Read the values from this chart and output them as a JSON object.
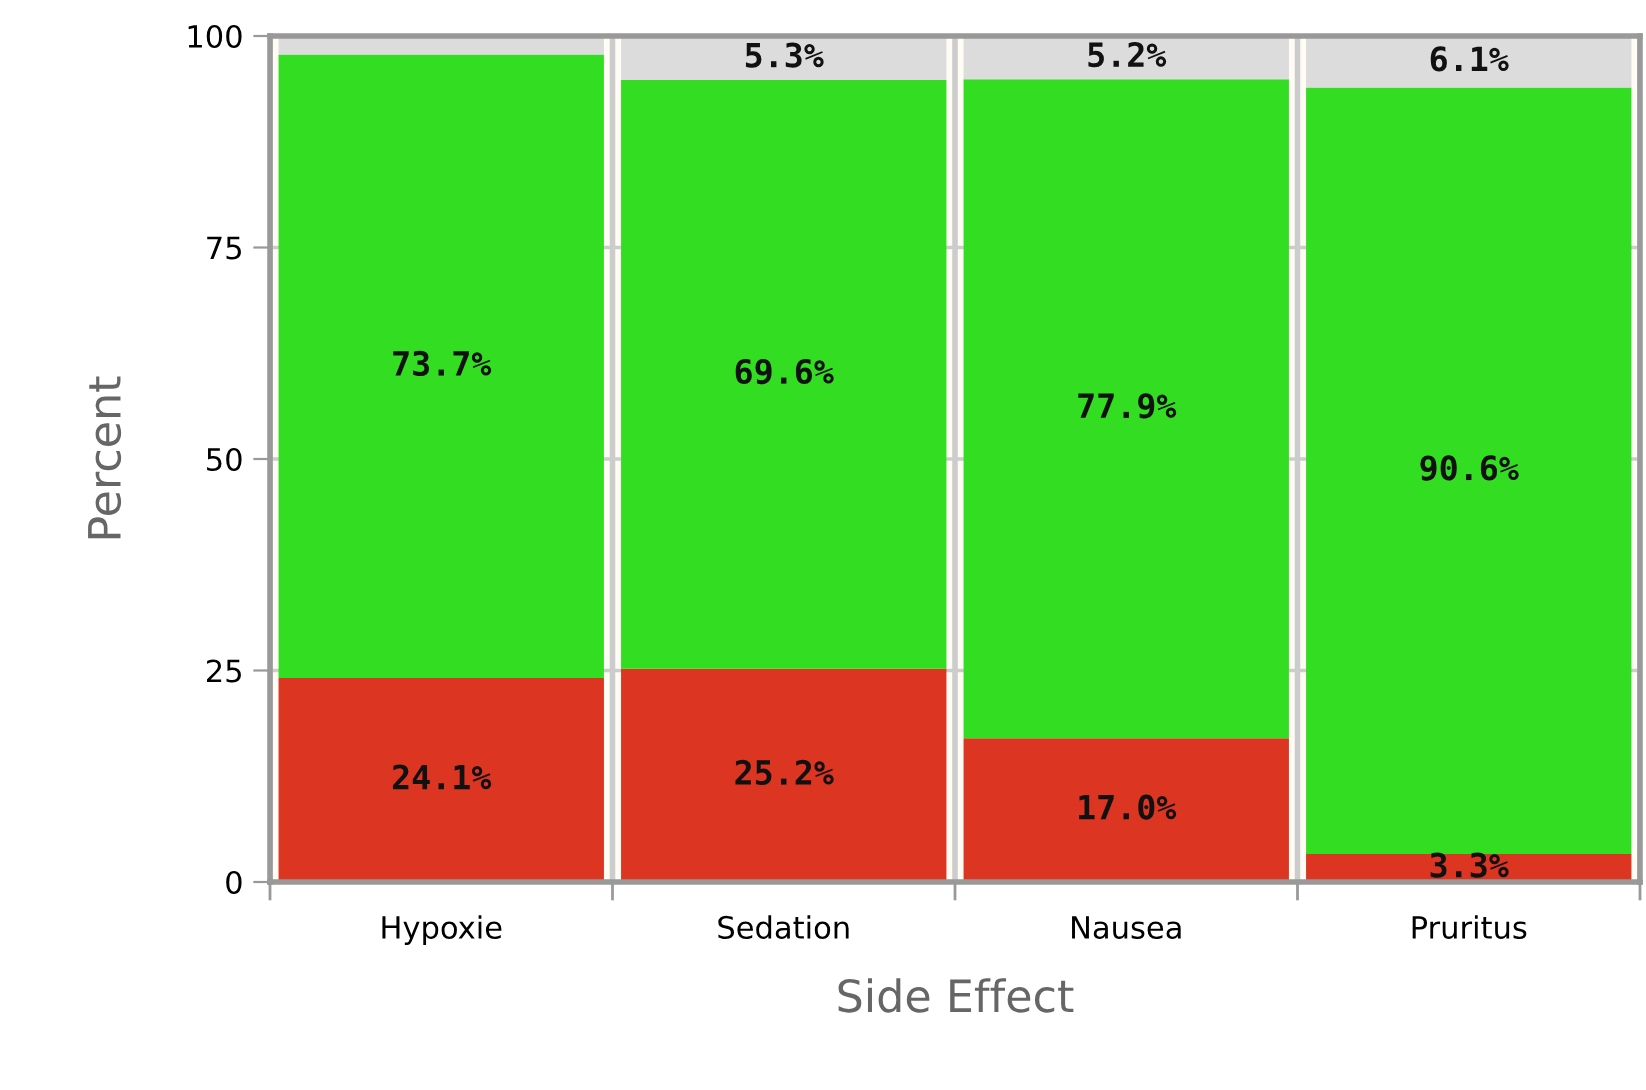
{
  "chart_data": {
    "type": "bar",
    "stacked": true,
    "xlabel": "Side Effect",
    "ylabel": "Percent",
    "categories": [
      "Hypoxie",
      "Sedation",
      "Nausea",
      "Pruritus"
    ],
    "series": [
      {
        "color": "#dc3522",
        "values": [
          24.1,
          25.2,
          17.0,
          3.3
        ],
        "value_labels": [
          "24.1%",
          "25.2%",
          "17.0%",
          "3.3%"
        ]
      },
      {
        "color": "#33dd22",
        "values": [
          73.7,
          69.6,
          77.9,
          90.6
        ],
        "value_labels": [
          "73.7%",
          "69.6%",
          "77.9%",
          "90.6%"
        ]
      },
      {
        "color": "#dcdcdc",
        "values": [
          2.2,
          5.3,
          5.2,
          6.1
        ],
        "value_labels": [
          null,
          "5.3%",
          "5.2%",
          "6.1%"
        ]
      }
    ],
    "ylim": [
      0,
      100
    ],
    "yticks": [
      0,
      25,
      50,
      75,
      100
    ],
    "grid": true,
    "legend": false
  }
}
